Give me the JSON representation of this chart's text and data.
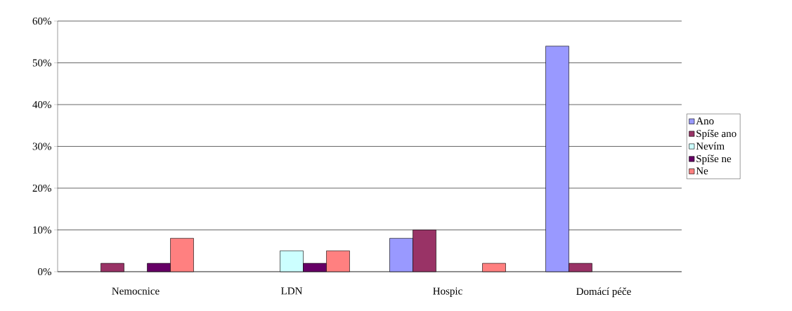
{
  "chart_data": {
    "type": "bar",
    "categories": [
      "Nemocnice",
      "LDN",
      "Hospic",
      "Domácí péče"
    ],
    "series": [
      {
        "name": "Ano",
        "color": "#9999ff",
        "values": [
          null,
          null,
          8,
          54
        ]
      },
      {
        "name": "Spíše ano",
        "color": "#993366",
        "values": [
          2,
          null,
          10,
          2
        ]
      },
      {
        "name": "Nevím",
        "color": "#ccffff",
        "values": [
          null,
          5,
          null,
          null
        ]
      },
      {
        "name": "Spíše ne",
        "color": "#660066",
        "values": [
          2,
          2,
          null,
          null
        ]
      },
      {
        "name": "Ne",
        "color": "#ff8080",
        "values": [
          8,
          5,
          2,
          null
        ]
      }
    ],
    "ylim": [
      0,
      60
    ],
    "yticks": [
      {
        "value": 0,
        "label": "0%"
      },
      {
        "value": 10,
        "label": "10%"
      },
      {
        "value": 20,
        "label": "20%"
      },
      {
        "value": 30,
        "label": "30%"
      },
      {
        "value": 40,
        "label": "40%"
      },
      {
        "value": 50,
        "label": "50%"
      },
      {
        "value": 60,
        "label": "60%"
      }
    ],
    "grid": "y",
    "legend": "right"
  }
}
